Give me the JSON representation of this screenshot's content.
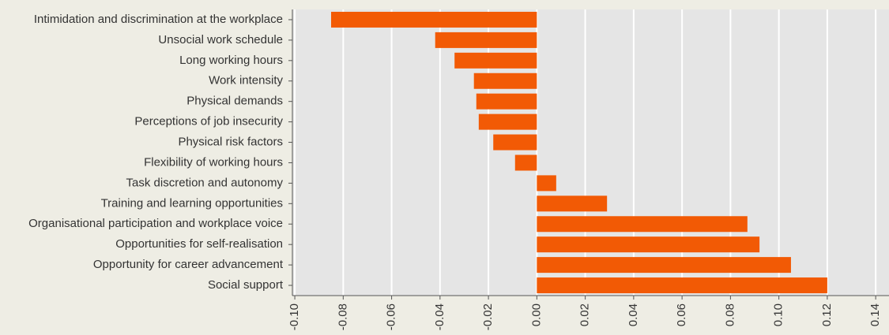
{
  "chart_data": {
    "type": "bar",
    "orientation": "horizontal",
    "categories": [
      "Intimidation and discrimination at the workplace",
      "Unsocial work schedule",
      "Long working hours",
      "Work intensity",
      "Physical demands",
      "Perceptions of job insecurity",
      "Physical risk factors",
      "Flexibility of working hours",
      "Task discretion and autonomy",
      "Training and learning opportunities",
      "Organisational participation and workplace voice",
      "Opportunities for self-realisation",
      "Opportunity for career advancement",
      "Social support"
    ],
    "values": [
      -0.085,
      -0.042,
      -0.034,
      -0.026,
      -0.025,
      -0.024,
      -0.018,
      -0.009,
      0.008,
      0.029,
      0.087,
      0.092,
      0.105,
      0.12
    ],
    "color": "#f25a05",
    "xlim": [
      -0.101,
      0.1455
    ],
    "xticks": [
      {
        "value": -0.1,
        "label": "-0.10"
      },
      -0.08,
      -0.06,
      -0.04,
      -0.02,
      {
        "value": 0,
        "label": "0.00"
      },
      0.02,
      0.04,
      0.06,
      0.08,
      {
        "value": 0.1,
        "label": "0.10"
      },
      0.12,
      0.14
    ],
    "grid": true
  }
}
